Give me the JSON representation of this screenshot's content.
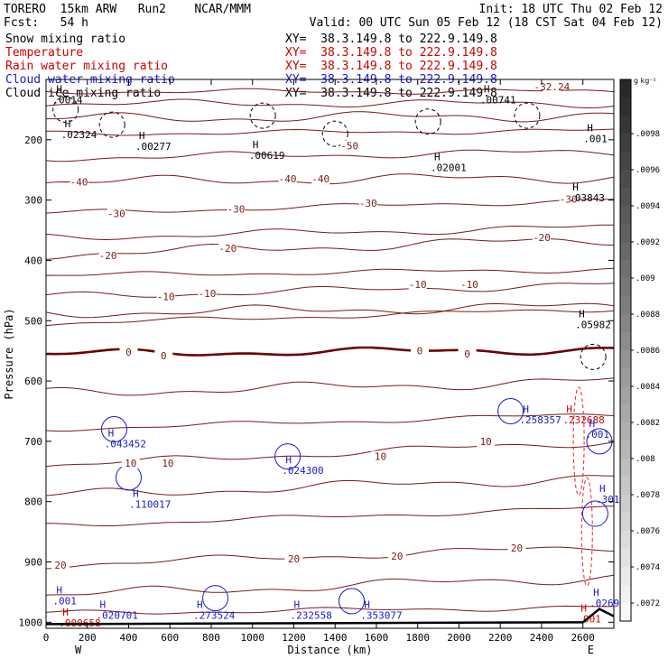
{
  "header": {
    "model": "TORERO  15km ARW   Run2    NCAR/MMM",
    "init": "Init: 18 UTC Thu 02 Feb 12",
    "fcst": "Fcst:   54 h",
    "valid": "Valid: 00 UTC Sun 05 Feb 12 (18 CST Sat 04 Feb 12)"
  },
  "fields": [
    {
      "name": "Snow mixing ratio",
      "xy": "XY=  38.3.149.8 to 222.9.149.8",
      "color": "#000000"
    },
    {
      "name": "Temperature",
      "xy": "XY=  38.3.149.8 to 222.9.149.8",
      "color": "#cc0000"
    },
    {
      "name": "Rain water mixing ratio",
      "xy": "XY=  38.3.149.8 to 222.9.149.8",
      "color": "#cc0000"
    },
    {
      "name": "Cloud water mixing ratio",
      "xy": "XY=  38.3.149.8 to 222.9.149.8",
      "color": "#1a1acc"
    },
    {
      "name": "Cloud ice mixing ratio",
      "xy": "XY=  38.3.149.8 to 222.9.149.8",
      "color": "#000000"
    }
  ],
  "colors": {
    "temperature": "#7a1a1a",
    "zero_isotherm": "#6b0000",
    "rain": "#ee2222",
    "cloud_water": "#1a1acc",
    "snow": "#000000",
    "ground": "#000000"
  },
  "chart_data": {
    "type": "contour-cross-section",
    "xlabel": "Distance (km)",
    "ylabel": "Pressure (hPa)",
    "xlim": [
      0,
      2750
    ],
    "ylim": [
      1010,
      100
    ],
    "x_ticks": [
      0,
      200,
      400,
      600,
      800,
      1000,
      1200,
      1400,
      1600,
      1800,
      2000,
      2200,
      2400,
      2600
    ],
    "y_ticks": [
      200,
      300,
      400,
      500,
      600,
      700,
      800,
      900,
      1000
    ],
    "west_label": "W",
    "east_label": "E",
    "colorbar": {
      "units": "g kg⁻¹",
      "labels": [
        ".0098",
        ".0096",
        ".0094",
        ".0092",
        ".009",
        ".0088",
        ".0086",
        ".0084",
        ".0082",
        ".008",
        ".0078",
        ".0076",
        ".0074",
        ".0072"
      ]
    },
    "temperature_contour_labels": [
      {
        "text": "-40",
        "x": 160,
        "p": 270
      },
      {
        "text": "-40",
        "x": 1170,
        "p": 265
      },
      {
        "text": "-40",
        "x": 1330,
        "p": 265
      },
      {
        "text": "-30",
        "x": 340,
        "p": 322
      },
      {
        "text": "-30",
        "x": 920,
        "p": 315
      },
      {
        "text": "-30",
        "x": 1560,
        "p": 305
      },
      {
        "text": "-30",
        "x": 2530,
        "p": 298
      },
      {
        "text": "-20",
        "x": 300,
        "p": 392
      },
      {
        "text": "-20",
        "x": 880,
        "p": 380
      },
      {
        "text": "-20",
        "x": 2400,
        "p": 362
      },
      {
        "text": "-10",
        "x": 580,
        "p": 460
      },
      {
        "text": "-10",
        "x": 780,
        "p": 455
      },
      {
        "text": "-10",
        "x": 1800,
        "p": 440
      },
      {
        "text": "-10",
        "x": 2050,
        "p": 440
      },
      {
        "text": "0",
        "x": 400,
        "p": 552
      },
      {
        "text": "0",
        "x": 570,
        "p": 558
      },
      {
        "text": "0",
        "x": 1810,
        "p": 550
      },
      {
        "text": "0",
        "x": 2040,
        "p": 555
      },
      {
        "text": "10",
        "x": 410,
        "p": 736
      },
      {
        "text": "10",
        "x": 590,
        "p": 736
      },
      {
        "text": "10",
        "x": 1620,
        "p": 725
      },
      {
        "text": "10",
        "x": 2130,
        "p": 700
      },
      {
        "text": "20",
        "x": 70,
        "p": 905
      },
      {
        "text": "20",
        "x": 1200,
        "p": 895
      },
      {
        "text": "20",
        "x": 1700,
        "p": 890
      },
      {
        "text": "20",
        "x": 2280,
        "p": 877
      }
    ],
    "cold_labels": [
      {
        "text": "-50",
        "x": 1470,
        "p": 210
      },
      {
        "text": "-32.24",
        "x": 2450,
        "p": 112
      }
    ],
    "extrema": [
      {
        "text": ".02324",
        "x": 90,
        "p": 185,
        "color": "#000000"
      },
      {
        "text": ".00277",
        "x": 450,
        "p": 205,
        "color": "#000000"
      },
      {
        "text": ".00619",
        "x": 1000,
        "p": 220,
        "color": "#000000"
      },
      {
        "text": ".02001",
        "x": 1880,
        "p": 240,
        "color": "#000000"
      },
      {
        "text": ".03843",
        "x": 2550,
        "p": 290,
        "color": "#000000"
      },
      {
        "text": ".05982",
        "x": 2580,
        "p": 500,
        "color": "#000000"
      },
      {
        "text": ".00741",
        "x": 2120,
        "p": 128,
        "color": "#000000"
      },
      {
        "text": ".0014",
        "x": 50,
        "p": 128,
        "color": "#000000"
      },
      {
        "text": ".001",
        "x": 2620,
        "p": 192,
        "color": "#000000"
      },
      {
        "text": ".043452",
        "x": 300,
        "p": 698,
        "color": "#1a1acc"
      },
      {
        "text": ".024300",
        "x": 1160,
        "p": 742,
        "color": "#1a1acc"
      },
      {
        "text": ".110017",
        "x": 420,
        "p": 798,
        "color": "#1a1acc"
      },
      {
        "text": ".258357",
        "x": 2310,
        "p": 658,
        "color": "#1a1acc"
      },
      {
        "text": ".232688",
        "x": 2520,
        "p": 658,
        "color": "#cc0000"
      },
      {
        "text": ".001",
        "x": 2630,
        "p": 682,
        "color": "#1a1acc"
      },
      {
        "text": ".3017",
        "x": 2680,
        "p": 790,
        "color": "#1a1acc"
      },
      {
        "text": ".001",
        "x": 50,
        "p": 958,
        "color": "#1a1acc"
      },
      {
        "text": ".020701",
        "x": 260,
        "p": 982,
        "color": "#1a1acc"
      },
      {
        "text": ".273524",
        "x": 730,
        "p": 982,
        "color": "#1a1acc"
      },
      {
        "text": ".232558",
        "x": 1200,
        "p": 982,
        "color": "#1a1acc"
      },
      {
        "text": ".353077",
        "x": 1540,
        "p": 982,
        "color": "#1a1acc"
      },
      {
        "text": ".02697",
        "x": 2650,
        "p": 962,
        "color": "#1a1acc"
      },
      {
        "text": ".001",
        "x": 2590,
        "p": 988,
        "color": "#cc0000"
      },
      {
        "text": ".000658",
        "x": 80,
        "p": 995,
        "color": "#cc0000"
      }
    ]
  }
}
